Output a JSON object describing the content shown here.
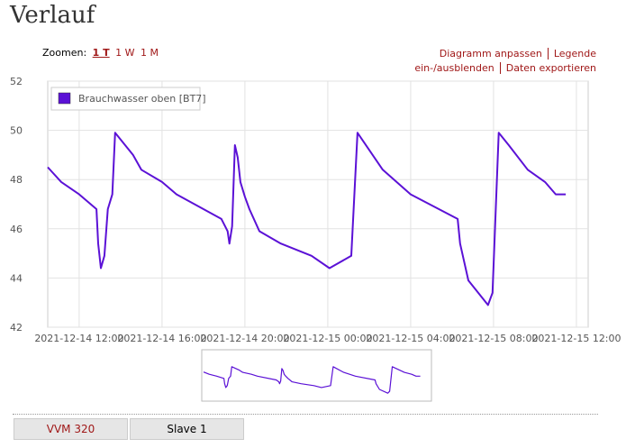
{
  "header": {
    "title": "Verlauf"
  },
  "toolbar": {
    "zoom_label": "Zoomen:",
    "zoom_options": [
      "1 T",
      "1 W",
      "1 M"
    ],
    "actions": [
      "Diagramm anpassen",
      "Legende ein-/ausblenden",
      "Daten exportieren"
    ]
  },
  "chart_data": {
    "type": "line",
    "series": [
      {
        "name": "Brauchwasser oben [BT7]",
        "color": "#5b11d6",
        "x": [
          "2021-12-14 10:29",
          "2021-12-14 11:08",
          "2021-12-14 12:00",
          "2021-12-14 12:50",
          "2021-12-14 12:55",
          "2021-12-14 13:03",
          "2021-12-14 13:13",
          "2021-12-14 13:23",
          "2021-12-14 13:36",
          "2021-12-14 13:44",
          "2021-12-14 14:36",
          "2021-12-14 15:00",
          "2021-12-14 16:00",
          "2021-12-14 16:42",
          "2021-12-14 18:52",
          "2021-12-14 19:10",
          "2021-12-14 19:15",
          "2021-12-14 19:23",
          "2021-12-14 19:31",
          "2021-12-14 19:39",
          "2021-12-14 19:47",
          "2021-12-14 20:00",
          "2021-12-14 20:13",
          "2021-12-14 20:42",
          "2021-12-14 21:44",
          "2021-12-14 23:13",
          "2021-12-15 00:05",
          "2021-12-15 01:08",
          "2021-12-15 01:26",
          "2021-12-15 02:39",
          "2021-12-15 04:00",
          "2021-12-15 06:16",
          "2021-12-15 06:23",
          "2021-12-15 06:47",
          "2021-12-15 07:44",
          "2021-12-15 07:57",
          "2021-12-15 08:15",
          "2021-12-15 08:44",
          "2021-12-15 09:39",
          "2021-12-15 10:29",
          "2021-12-15 11:00",
          "2021-12-15 11:29"
        ],
        "values": [
          48.5,
          47.9,
          47.4,
          46.8,
          45.4,
          44.4,
          44.9,
          46.8,
          47.4,
          49.9,
          49.0,
          48.4,
          47.9,
          47.4,
          46.4,
          45.9,
          45.4,
          46.1,
          49.4,
          48.9,
          47.9,
          47.3,
          46.8,
          45.9,
          45.4,
          44.9,
          44.4,
          44.9,
          49.9,
          48.4,
          47.4,
          46.4,
          45.4,
          43.9,
          42.9,
          43.4,
          49.9,
          49.4,
          48.4,
          47.9,
          47.4,
          47.4
        ]
      }
    ],
    "xlim": [
      "2021-12-14 10:29",
      "2021-12-15 12:34"
    ],
    "xticks": [
      "2021-12-14 12:00",
      "2021-12-14 16:00",
      "2021-12-14 20:00",
      "2021-12-15 00:00",
      "2021-12-15 04:00",
      "2021-12-15 08:00",
      "2021-12-15 12:00"
    ],
    "ylim": [
      42,
      52
    ],
    "yticks": [
      42,
      44,
      46,
      48,
      50,
      52
    ],
    "grid": true,
    "legend": "top-left"
  },
  "tabs": [
    "VVM 320",
    "Slave 1"
  ]
}
